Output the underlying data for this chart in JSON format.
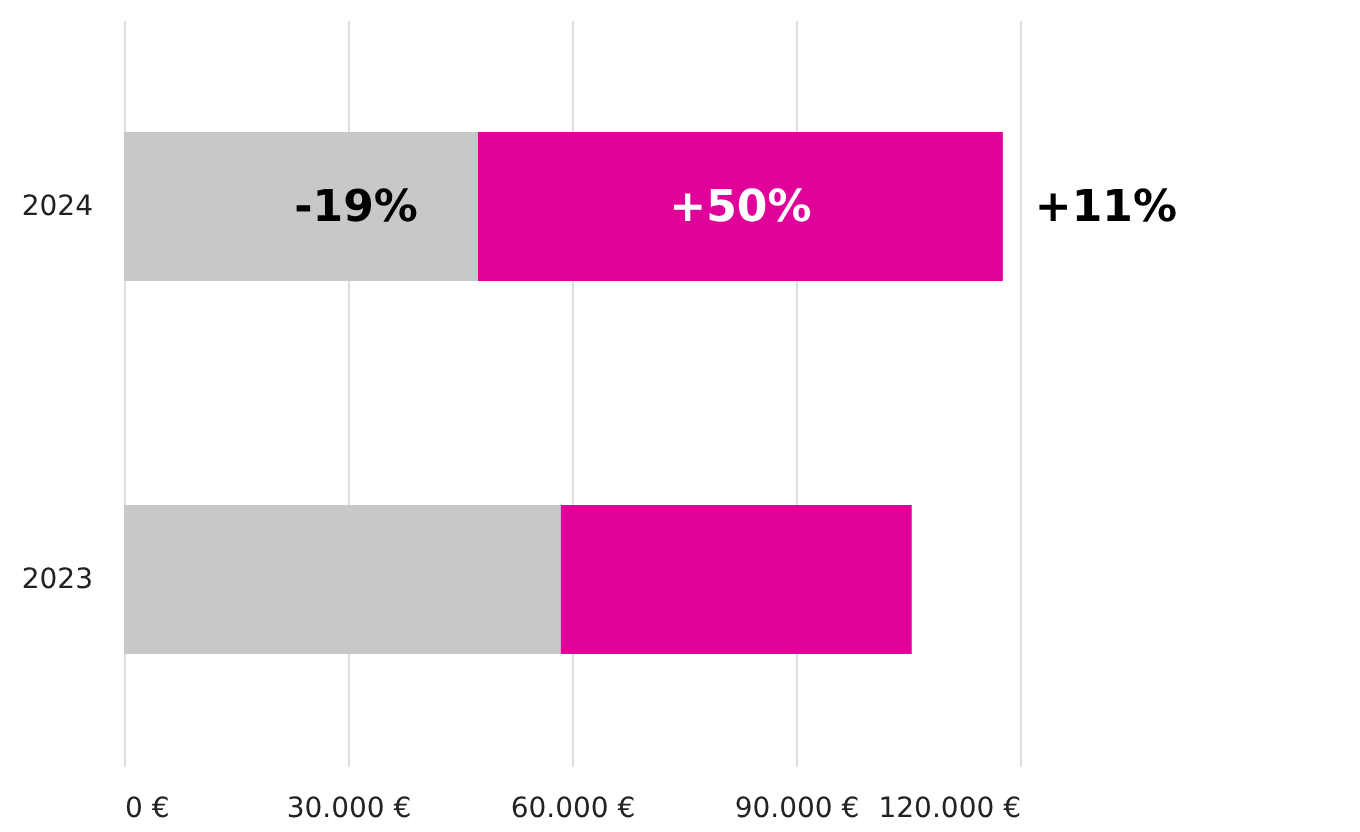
{
  "chart_data": {
    "type": "bar",
    "orientation": "horizontal",
    "stacked": true,
    "categories": [
      "2024",
      "2023"
    ],
    "series": [
      {
        "color": "#c8c8c8",
        "values": [
          47400,
          58500
        ]
      },
      {
        "color": "#e0009a",
        "values": [
          70300,
          47000
        ]
      }
    ],
    "annotations": [
      {
        "text": "-19%",
        "x": 47400,
        "y": "2024"
      },
      "+50%",
      {
        "text": "+11%",
        "x": 117700,
        "y": "2024"
      }
    ],
    "xlim": [
      0,
      120000
    ],
    "xticks": [
      {
        "value": 0,
        "label": "0 €"
      },
      {
        "value": 30000,
        "label": "30.000 €"
      },
      {
        "value": 60000,
        "label": "60.000 €"
      },
      {
        "value": 90000,
        "label": "90.000 €"
      },
      {
        "value": 120000,
        "label": "120.000 €"
      }
    ],
    "grid": "x",
    "legend": false
  }
}
